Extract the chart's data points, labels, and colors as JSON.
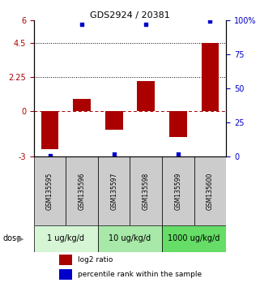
{
  "title": "GDS2924 / 20381",
  "samples": [
    "GSM135595",
    "GSM135596",
    "GSM135597",
    "GSM135598",
    "GSM135599",
    "GSM135600"
  ],
  "log2_ratios": [
    -2.5,
    0.8,
    -1.2,
    2.0,
    -1.7,
    4.5
  ],
  "percentile_ranks": [
    1,
    97,
    2,
    97,
    2,
    99
  ],
  "ylim_left": [
    -3,
    6
  ],
  "yticks_left": [
    -3,
    0,
    2.25,
    4.5,
    6
  ],
  "ytick_labels_left": [
    "-3",
    "0",
    "2.25",
    "4.5",
    "6"
  ],
  "yticks_right": [
    0,
    25,
    50,
    75,
    100
  ],
  "ytick_labels_right": [
    "0",
    "25",
    "50",
    "75",
    "100%"
  ],
  "hlines_dotted": [
    4.5,
    2.25
  ],
  "hline_dashed": 0,
  "bar_color": "#aa0000",
  "blue_color": "#0000cc",
  "dose_groups": [
    {
      "label": "1 ug/kg/d",
      "samples": [
        "GSM135595",
        "GSM135596"
      ],
      "color": "#d5f5d5"
    },
    {
      "label": "10 ug/kg/d",
      "samples": [
        "GSM135597",
        "GSM135598"
      ],
      "color": "#a8e8a8"
    },
    {
      "label": "1000 ug/kg/d",
      "samples": [
        "GSM135599",
        "GSM135600"
      ],
      "color": "#66dd66"
    }
  ],
  "legend_red_label": "log2 ratio",
  "legend_blue_label": "percentile rank within the sample",
  "bar_width": 0.55,
  "background_color": "#ffffff",
  "label_box_color": "#cccccc",
  "title_fontsize": 8,
  "axis_fontsize": 7,
  "label_fontsize": 5.5,
  "dose_fontsize": 7,
  "legend_fontsize": 6.5
}
